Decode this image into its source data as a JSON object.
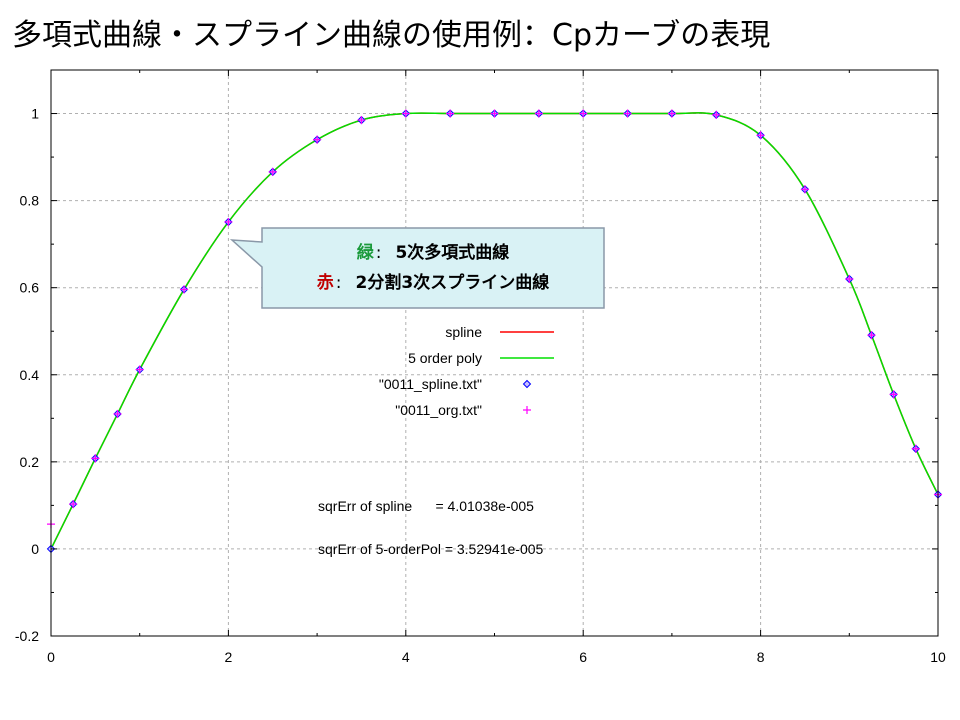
{
  "slide_title": "多項式曲線・スプライン曲線の使用例：Cpカーブの表現",
  "callout": {
    "line1_key": "緑",
    "line1_sep": ":",
    "line1_text": "5次多項式曲線",
    "line1_key_color": "#1a9a3a",
    "line2_key": "赤",
    "line2_sep": ":",
    "line2_text": "2分割3次スプライン曲線",
    "line2_key_color": "#c00000",
    "background": "#d9f2f5"
  },
  "annotations": [
    {
      "label": "sqrErr of spline      = 4.01038e-005"
    },
    {
      "label": "sqrErr of 5-orderPol = 3.52941e-005"
    }
  ],
  "chart_data": {
    "type": "line",
    "title": "",
    "xlabel": "",
    "ylabel": "",
    "xlim": [
      0,
      10
    ],
    "ylim": [
      -0.2,
      1.1
    ],
    "x_ticks": [
      0,
      2,
      4,
      6,
      8,
      10
    ],
    "x_tick_labels": [
      "0",
      "2",
      "4",
      "6",
      "8",
      "10"
    ],
    "y_ticks": [
      -0.2,
      0,
      0.2,
      0.4,
      0.6,
      0.8,
      1
    ],
    "y_tick_labels": [
      "-0.2",
      "0",
      "0.2",
      "0.4",
      "0.6",
      "0.8",
      "1"
    ],
    "grid": true,
    "legend_position": "center",
    "series": [
      {
        "name": "spline",
        "style": "line",
        "color": "#ff0000",
        "x": [
          0,
          0.25,
          0.5,
          0.75,
          1,
          1.5,
          2,
          2.5,
          3,
          3.5,
          4,
          4.5,
          5,
          5.5,
          6,
          6.5,
          7,
          7.5,
          8,
          8.5,
          9,
          9.25,
          9.5,
          9.75,
          10
        ],
        "y": [
          0,
          0.103,
          0.208,
          0.31,
          0.412,
          0.596,
          0.751,
          0.866,
          0.94,
          0.985,
          1.0,
          1.0,
          1.0,
          1.0,
          1.0,
          1.0,
          1.0,
          0.997,
          0.95,
          0.826,
          0.62,
          0.491,
          0.355,
          0.23,
          0.125
        ]
      },
      {
        "name": "5 order poly",
        "style": "line",
        "color": "#00e000",
        "x": [
          0,
          0.25,
          0.5,
          0.75,
          1,
          1.5,
          2,
          2.5,
          3,
          3.5,
          4,
          4.5,
          5,
          5.5,
          6,
          6.5,
          7,
          7.5,
          8,
          8.5,
          9,
          9.25,
          9.5,
          9.75,
          10
        ],
        "y": [
          0,
          0.103,
          0.208,
          0.31,
          0.412,
          0.596,
          0.751,
          0.866,
          0.94,
          0.985,
          1.0,
          1.0,
          1.0,
          1.0,
          1.0,
          1.0,
          1.0,
          0.997,
          0.95,
          0.826,
          0.62,
          0.491,
          0.355,
          0.23,
          0.125
        ]
      },
      {
        "name": "\"0011_spline.txt\"",
        "style": "diamond",
        "color": "#0000ff",
        "fill": "#c8c0ff",
        "x": [
          0,
          0.25,
          0.5,
          0.75,
          1,
          1.5,
          2,
          2.5,
          3,
          3.5,
          4,
          4.5,
          5,
          5.5,
          6,
          6.5,
          7,
          7.5,
          8,
          8.5,
          9,
          9.25,
          9.5,
          9.75,
          10
        ],
        "y": [
          0,
          0.103,
          0.208,
          0.31,
          0.412,
          0.596,
          0.751,
          0.866,
          0.94,
          0.985,
          1.0,
          1.0,
          1.0,
          1.0,
          1.0,
          1.0,
          1.0,
          0.997,
          0.95,
          0.826,
          0.62,
          0.491,
          0.355,
          0.23,
          0.125
        ]
      },
      {
        "name": "\"0011_org.txt\"",
        "style": "plus",
        "color": "#ff00ff",
        "x": [
          0,
          0.25,
          0.5,
          0.75,
          1,
          1.5,
          2,
          2.5,
          3,
          3.5,
          4,
          4.5,
          5,
          5.5,
          6,
          6.5,
          7,
          7.5,
          8,
          8.5,
          9,
          9.25,
          9.5,
          9.75,
          10
        ],
        "y": [
          0.057,
          0.103,
          0.208,
          0.31,
          0.412,
          0.596,
          0.751,
          0.866,
          0.94,
          0.985,
          1.0,
          1.0,
          1.0,
          1.0,
          1.0,
          1.0,
          1.0,
          0.997,
          0.95,
          0.826,
          0.62,
          0.491,
          0.355,
          0.23,
          0.125
        ]
      }
    ]
  }
}
